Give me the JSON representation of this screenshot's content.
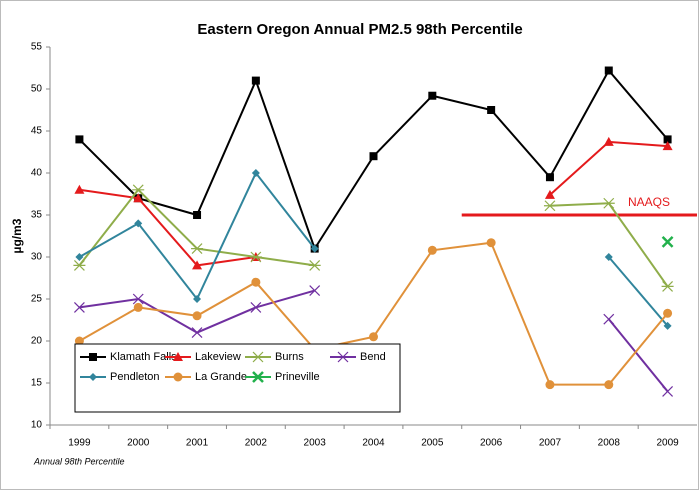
{
  "chart_data": {
    "type": "line",
    "title": "Eastern Oregon Annual PM2.5 98th Percentile",
    "y_label": "µg/m3",
    "note": "Annual 98th Percentile",
    "categories": [
      "1999",
      "2000",
      "2001",
      "2002",
      "2003",
      "2004",
      "2005",
      "2006",
      "2007",
      "2008",
      "2009"
    ],
    "series": [
      {
        "name": "Klamath Falls",
        "color": "#000000",
        "marker": "square",
        "values": [
          44,
          37,
          35,
          51,
          31,
          42,
          49.2,
          47.5,
          39.5,
          52.2,
          44
        ]
      },
      {
        "name": "Lakeview",
        "color": "#e41a1c",
        "marker": "triangle",
        "values": [
          38,
          37,
          29,
          30,
          null,
          null,
          null,
          null,
          37.4,
          43.7,
          43.2
        ]
      },
      {
        "name": "Burns",
        "color": "#8fad4a",
        "marker": "star",
        "values": [
          29,
          38,
          31,
          30,
          29,
          null,
          null,
          null,
          36.1,
          36.4,
          26.5
        ]
      },
      {
        "name": "Bend",
        "color": "#7030a0",
        "marker": "x",
        "values": [
          24,
          25,
          21,
          24,
          26,
          null,
          null,
          null,
          null,
          22.6,
          14
        ]
      },
      {
        "name": "Pendleton",
        "color": "#31859c",
        "marker": "diamond",
        "values": [
          30,
          34,
          25,
          40,
          31,
          null,
          null,
          null,
          null,
          30,
          21.8
        ]
      },
      {
        "name": "La Grande",
        "color": "#e0913a",
        "marker": "circle",
        "values": [
          20,
          24,
          23,
          27,
          19,
          20.5,
          30.8,
          31.7,
          14.8,
          14.8,
          23.3
        ]
      },
      {
        "name": "Prineville",
        "color": "#22b14c",
        "marker": "boldx",
        "values": [
          null,
          null,
          null,
          null,
          null,
          null,
          null,
          null,
          null,
          null,
          31.8
        ]
      }
    ],
    "naaqs": {
      "label": "NAAQS",
      "value": 35,
      "color": "#e41a1c"
    },
    "ylim": [
      10,
      55
    ],
    "yticks": [
      10,
      15,
      20,
      25,
      30,
      35,
      40,
      45,
      50,
      55
    ],
    "grid": false
  }
}
